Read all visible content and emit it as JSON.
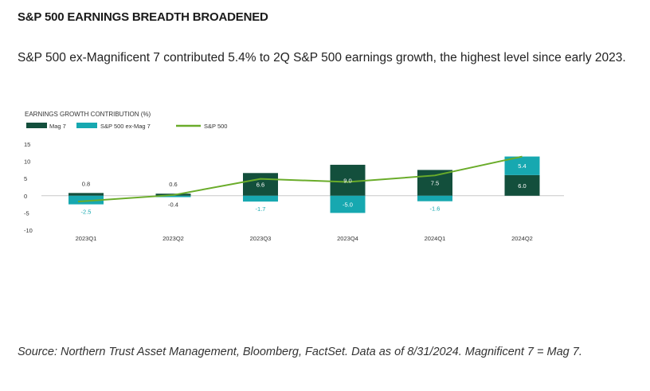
{
  "heading": "S&P 500 EARNINGS BREADTH BROADENED",
  "subtitle": "S&P 500 ex-Magnificent 7 contributed 5.4% to 2Q S&P 500 earnings growth, the highest level since early 2023.",
  "source": "Source: Northern Trust Asset Management, Bloomberg, FactSet. Data as of 8/31/2024. Magnificent 7 = Mag 7.",
  "colors": {
    "mag7": "#134f3c",
    "ex_mag7": "#17a8b0",
    "sp500": "#6aac2a",
    "axis": "#c8c8c8",
    "text": "#333333"
  },
  "chart_data": {
    "type": "bar",
    "stacked": true,
    "title": "EARNINGS GROWTH CONTRIBUTION (%)",
    "categories": [
      "2023Q1",
      "2023Q2",
      "2023Q3",
      "2023Q4",
      "2024Q1",
      "2024Q2"
    ],
    "series": [
      {
        "name": "Mag 7",
        "type": "bar",
        "color": "#134f3c",
        "values": [
          0.8,
          0.6,
          6.6,
          9.0,
          7.5,
          6.0
        ],
        "labels": [
          "0.8",
          "0.6",
          "6.6",
          "9.0",
          "7.5",
          "6.0"
        ]
      },
      {
        "name": "S&P 500 ex-Mag 7",
        "type": "bar",
        "color": "#17a8b0",
        "values": [
          -2.5,
          -0.4,
          -1.7,
          -5.0,
          -1.6,
          5.4
        ],
        "labels": [
          "-2.5",
          "-0.4",
          "-1.7",
          "-5.0",
          "-1.6",
          "5.4"
        ]
      },
      {
        "name": "S&P 500",
        "type": "line",
        "color": "#6aac2a",
        "values": [
          -1.7,
          0.2,
          4.9,
          4.0,
          5.9,
          11.4
        ]
      }
    ],
    "yticks": [
      15,
      10,
      5,
      0,
      -5,
      -10
    ],
    "ylim": [
      -10,
      15
    ],
    "legend": "top-left",
    "grid": false
  }
}
